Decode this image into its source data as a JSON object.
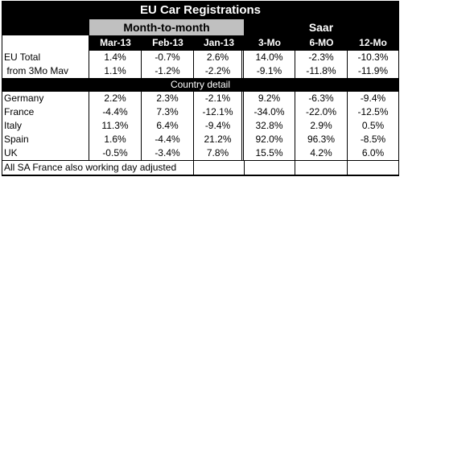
{
  "title": "EU Car Registrations",
  "group_headers": {
    "month_to_month": "Month-to-month",
    "saar": "Saar"
  },
  "columns": [
    "Mar-13",
    "Feb-13",
    "Jan-13",
    "3-Mo",
    "6-MO",
    "12-Mo"
  ],
  "summary_rows": [
    {
      "label": "EU Total",
      "values": [
        "1.4%",
        "-0.7%",
        "2.6%",
        "14.0%",
        "-2.3%",
        "-10.3%"
      ]
    },
    {
      "label": " from 3Mo Mav",
      "values": [
        "1.1%",
        "-1.2%",
        "-2.2%",
        "-9.1%",
        "-11.8%",
        "-11.9%"
      ]
    }
  ],
  "section_label": "Country detail",
  "country_rows": [
    {
      "label": "Germany",
      "values": [
        "2.2%",
        "2.3%",
        "-2.1%",
        "9.2%",
        "-6.3%",
        "-9.4%"
      ]
    },
    {
      "label": "France",
      "values": [
        "-4.4%",
        "7.3%",
        "-12.1%",
        "-34.0%",
        "-22.0%",
        "-12.5%"
      ]
    },
    {
      "label": "Italy",
      "values": [
        "11.3%",
        "6.4%",
        "-9.4%",
        "32.8%",
        "2.9%",
        "0.5%"
      ]
    },
    {
      "label": "Spain",
      "values": [
        "1.6%",
        "-4.4%",
        "21.2%",
        "92.0%",
        "96.3%",
        "-8.5%"
      ]
    },
    {
      "label": "UK",
      "values": [
        "-0.5%",
        "-3.4%",
        "7.8%",
        "15.5%",
        "4.2%",
        "6.0%"
      ]
    }
  ],
  "footnote": "All SA France also working day adjusted"
}
